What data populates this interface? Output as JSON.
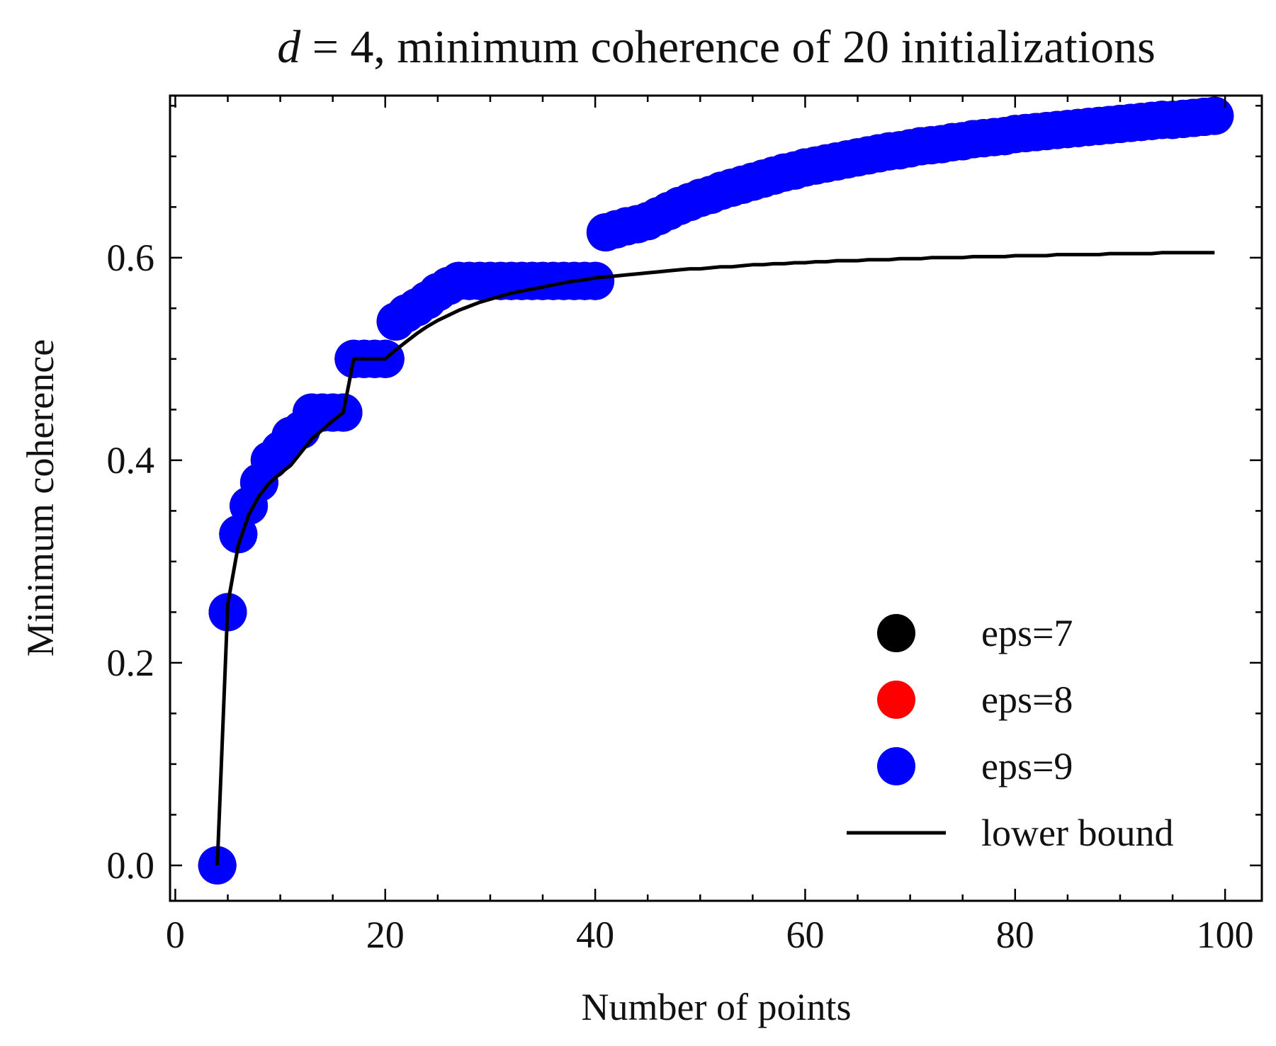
{
  "chart_data": {
    "type": "scatter",
    "title": "d = 4, minimum coherence of 20 initializations",
    "title_parts": {
      "var": "d",
      "rest": " = 4, minimum coherence of 20 initializations"
    },
    "xlabel": "Number of points",
    "ylabel": "Minimum coherence",
    "xlim": [
      -0.5,
      103.5
    ],
    "ylim": [
      -0.035,
      0.76
    ],
    "xticks": [
      0,
      20,
      40,
      60,
      80,
      100
    ],
    "xtick_labels": [
      "0",
      "20",
      "40",
      "60",
      "80",
      "100"
    ],
    "yticks": [
      0.0,
      0.2,
      0.4,
      0.6
    ],
    "ytick_labels": [
      "0.0",
      "0.2",
      "0.4",
      "0.6"
    ],
    "x_minor_step": 5,
    "y_minor_step": 0.05,
    "grid": false,
    "legend_position": "lower-right",
    "colors": {
      "eps7": "#000000",
      "eps8": "#ff0000",
      "eps9": "#0000ff",
      "bound": "#000000"
    },
    "series": [
      {
        "name": "eps=7",
        "kind": "scatter",
        "color": "#000000",
        "x": [
          4,
          5,
          6,
          7,
          8,
          9,
          10,
          11,
          12,
          13,
          14,
          15,
          16,
          17,
          18,
          19,
          20,
          21,
          22,
          23,
          24,
          25,
          26,
          27,
          28,
          29,
          30,
          31,
          32,
          33,
          34,
          35,
          36,
          37,
          38,
          39,
          40,
          41,
          42,
          43,
          44,
          45,
          46,
          47,
          48,
          49,
          50,
          51,
          52,
          53,
          54,
          55,
          56,
          57,
          58,
          59,
          60,
          61,
          62,
          63,
          64,
          65,
          66,
          67,
          68,
          69,
          70,
          71,
          72,
          73,
          74,
          75,
          76,
          77,
          78,
          79,
          80,
          81,
          82,
          83,
          84,
          85,
          86,
          87,
          88,
          89,
          90,
          91,
          92,
          93,
          94,
          95,
          96,
          97,
          98,
          99
        ],
        "y": [
          0.0,
          0.25,
          0.327,
          0.355,
          0.378,
          0.4,
          0.41,
          0.424,
          0.43,
          0.447,
          0.447,
          0.447,
          0.447,
          0.5,
          0.5,
          0.5,
          0.5,
          0.537,
          0.545,
          0.551,
          0.558,
          0.566,
          0.572,
          0.577,
          0.577,
          0.577,
          0.577,
          0.577,
          0.577,
          0.577,
          0.577,
          0.577,
          0.577,
          0.577,
          0.577,
          0.577,
          0.577,
          0.625,
          0.628,
          0.631,
          0.633,
          0.636,
          0.641,
          0.646,
          0.651,
          0.655,
          0.659,
          0.662,
          0.666,
          0.669,
          0.672,
          0.675,
          0.678,
          0.681,
          0.684,
          0.686,
          0.689,
          0.691,
          0.693,
          0.695,
          0.697,
          0.699,
          0.701,
          0.703,
          0.705,
          0.706,
          0.708,
          0.71,
          0.711,
          0.712,
          0.714,
          0.715,
          0.717,
          0.718,
          0.719,
          0.72,
          0.722,
          0.723,
          0.724,
          0.725,
          0.726,
          0.727,
          0.728,
          0.729,
          0.73,
          0.731,
          0.732,
          0.733,
          0.734,
          0.735,
          0.736,
          0.736,
          0.737,
          0.738,
          0.739,
          0.74
        ]
      },
      {
        "name": "eps=8",
        "kind": "scatter",
        "color": "#ff0000",
        "x": [
          4,
          5,
          6,
          7,
          8,
          9,
          10,
          11,
          12,
          13,
          14,
          15,
          16,
          17,
          18,
          19,
          20,
          21,
          22,
          23,
          24,
          25,
          26,
          27,
          28,
          29,
          30,
          31,
          32,
          33,
          34,
          35,
          36,
          37,
          38,
          39,
          40,
          41,
          42,
          43,
          44,
          45,
          46,
          47,
          48,
          49,
          50,
          51,
          52,
          53,
          54,
          55,
          56,
          57,
          58,
          59,
          60,
          61,
          62,
          63,
          64,
          65,
          66,
          67,
          68,
          69,
          70,
          71,
          72,
          73,
          74,
          75,
          76,
          77,
          78,
          79,
          80,
          81,
          82,
          83,
          84,
          85,
          86,
          87,
          88,
          89,
          90,
          91,
          92,
          93,
          94,
          95,
          96,
          97,
          98,
          99
        ],
        "y": [
          0.0,
          0.25,
          0.327,
          0.355,
          0.378,
          0.4,
          0.41,
          0.424,
          0.43,
          0.447,
          0.447,
          0.447,
          0.447,
          0.5,
          0.5,
          0.5,
          0.5,
          0.537,
          0.545,
          0.551,
          0.558,
          0.566,
          0.572,
          0.577,
          0.577,
          0.577,
          0.577,
          0.577,
          0.577,
          0.577,
          0.577,
          0.577,
          0.577,
          0.577,
          0.577,
          0.577,
          0.577,
          0.625,
          0.628,
          0.631,
          0.633,
          0.636,
          0.641,
          0.646,
          0.651,
          0.655,
          0.659,
          0.662,
          0.666,
          0.669,
          0.672,
          0.675,
          0.678,
          0.681,
          0.684,
          0.686,
          0.689,
          0.691,
          0.693,
          0.695,
          0.697,
          0.699,
          0.701,
          0.703,
          0.705,
          0.706,
          0.708,
          0.71,
          0.711,
          0.712,
          0.714,
          0.715,
          0.717,
          0.718,
          0.719,
          0.72,
          0.722,
          0.723,
          0.724,
          0.725,
          0.726,
          0.727,
          0.728,
          0.729,
          0.73,
          0.731,
          0.732,
          0.733,
          0.734,
          0.735,
          0.736,
          0.736,
          0.737,
          0.738,
          0.739,
          0.74
        ]
      },
      {
        "name": "eps=9",
        "kind": "scatter",
        "color": "#0000ff",
        "x": [
          4,
          5,
          6,
          7,
          8,
          9,
          10,
          11,
          12,
          13,
          14,
          15,
          16,
          17,
          18,
          19,
          20,
          21,
          22,
          23,
          24,
          25,
          26,
          27,
          28,
          29,
          30,
          31,
          32,
          33,
          34,
          35,
          36,
          37,
          38,
          39,
          40,
          41,
          42,
          43,
          44,
          45,
          46,
          47,
          48,
          49,
          50,
          51,
          52,
          53,
          54,
          55,
          56,
          57,
          58,
          59,
          60,
          61,
          62,
          63,
          64,
          65,
          66,
          67,
          68,
          69,
          70,
          71,
          72,
          73,
          74,
          75,
          76,
          77,
          78,
          79,
          80,
          81,
          82,
          83,
          84,
          85,
          86,
          87,
          88,
          89,
          90,
          91,
          92,
          93,
          94,
          95,
          96,
          97,
          98,
          99
        ],
        "y": [
          0.0,
          0.25,
          0.327,
          0.355,
          0.378,
          0.4,
          0.41,
          0.424,
          0.43,
          0.447,
          0.447,
          0.447,
          0.447,
          0.5,
          0.5,
          0.5,
          0.5,
          0.537,
          0.545,
          0.551,
          0.558,
          0.566,
          0.572,
          0.577,
          0.577,
          0.577,
          0.577,
          0.577,
          0.577,
          0.577,
          0.577,
          0.577,
          0.577,
          0.577,
          0.577,
          0.577,
          0.577,
          0.625,
          0.628,
          0.631,
          0.633,
          0.636,
          0.641,
          0.646,
          0.651,
          0.655,
          0.659,
          0.662,
          0.666,
          0.669,
          0.672,
          0.675,
          0.678,
          0.681,
          0.684,
          0.686,
          0.689,
          0.691,
          0.693,
          0.695,
          0.697,
          0.699,
          0.701,
          0.703,
          0.705,
          0.706,
          0.708,
          0.71,
          0.711,
          0.712,
          0.714,
          0.715,
          0.717,
          0.718,
          0.719,
          0.72,
          0.722,
          0.723,
          0.724,
          0.725,
          0.726,
          0.727,
          0.728,
          0.729,
          0.73,
          0.731,
          0.732,
          0.733,
          0.734,
          0.735,
          0.736,
          0.736,
          0.737,
          0.738,
          0.739,
          0.74
        ]
      },
      {
        "name": "lower bound",
        "kind": "line",
        "color": "#000000",
        "x": [
          4,
          5,
          6,
          7,
          8,
          9,
          10,
          11,
          12,
          13,
          14,
          15,
          16,
          17,
          18,
          19,
          20,
          21,
          22,
          23,
          24,
          25,
          26,
          27,
          28,
          29,
          30,
          31,
          32,
          33,
          34,
          35,
          36,
          37,
          38,
          39,
          40,
          41,
          42,
          43,
          44,
          45,
          46,
          47,
          48,
          49,
          50,
          51,
          52,
          53,
          54,
          55,
          56,
          57,
          58,
          59,
          60,
          61,
          62,
          63,
          64,
          65,
          66,
          67,
          68,
          69,
          70,
          71,
          72,
          73,
          74,
          75,
          76,
          77,
          78,
          79,
          80,
          81,
          82,
          83,
          84,
          85,
          86,
          87,
          88,
          89,
          90,
          91,
          92,
          93,
          94,
          95,
          96,
          97,
          98,
          99
        ],
        "y": [
          0.0,
          0.258,
          0.316,
          0.346,
          0.365,
          0.378,
          0.387,
          0.395,
          0.408,
          0.421,
          0.43,
          0.439,
          0.447,
          0.5,
          0.5,
          0.5,
          0.5,
          0.509,
          0.517,
          0.525,
          0.532,
          0.538,
          0.543,
          0.548,
          0.552,
          0.556,
          0.559,
          0.562,
          0.565,
          0.567,
          0.569,
          0.571,
          0.573,
          0.575,
          0.577,
          0.578,
          0.58,
          0.581,
          0.582,
          0.583,
          0.584,
          0.585,
          0.586,
          0.587,
          0.588,
          0.589,
          0.589,
          0.59,
          0.591,
          0.591,
          0.592,
          0.593,
          0.593,
          0.594,
          0.594,
          0.595,
          0.595,
          0.596,
          0.596,
          0.597,
          0.597,
          0.597,
          0.598,
          0.598,
          0.598,
          0.599,
          0.599,
          0.599,
          0.6,
          0.6,
          0.6,
          0.6,
          0.601,
          0.601,
          0.601,
          0.601,
          0.602,
          0.602,
          0.602,
          0.602,
          0.603,
          0.603,
          0.603,
          0.603,
          0.603,
          0.604,
          0.604,
          0.604,
          0.604,
          0.604,
          0.605,
          0.605,
          0.605,
          0.605,
          0.605,
          0.605
        ]
      }
    ]
  }
}
